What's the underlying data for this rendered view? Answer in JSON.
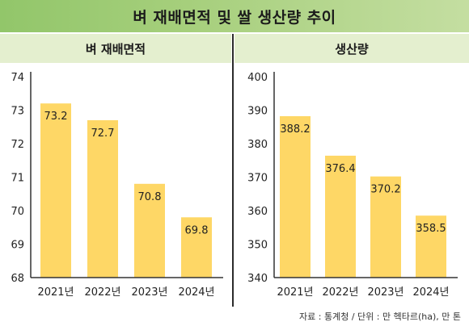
{
  "title": "벼 재배면적 및 쌀 생산량 추이",
  "source": "자료 : 통계청 / 단위 : 만 헥타르(ha), 만 톤",
  "colors": {
    "bar": "#fed766",
    "title_bg": "#9cc973",
    "panel_head_bg": "#e4efcf",
    "axis": "#333333"
  },
  "chart_data": [
    {
      "type": "bar",
      "title": "벼 재배면적",
      "categories": [
        "2021년",
        "2022년",
        "2023년",
        "2024년"
      ],
      "values": [
        73.2,
        72.7,
        70.8,
        69.8
      ],
      "value_labels": [
        "73.2",
        "72.7",
        "70.8",
        "69.8"
      ],
      "ylim": [
        68,
        74
      ],
      "yticks": [
        68,
        69,
        70,
        71,
        72,
        73,
        74
      ],
      "grid": false
    },
    {
      "type": "bar",
      "title": "생산량",
      "categories": [
        "2021년",
        "2022년",
        "2023년",
        "2024년"
      ],
      "values": [
        388.2,
        376.4,
        370.2,
        358.5
      ],
      "value_labels": [
        "388.2",
        "376.4",
        "370.2",
        "358.5"
      ],
      "ylim": [
        340,
        400
      ],
      "yticks": [
        340,
        350,
        360,
        370,
        380,
        390,
        400
      ],
      "grid": false
    }
  ]
}
